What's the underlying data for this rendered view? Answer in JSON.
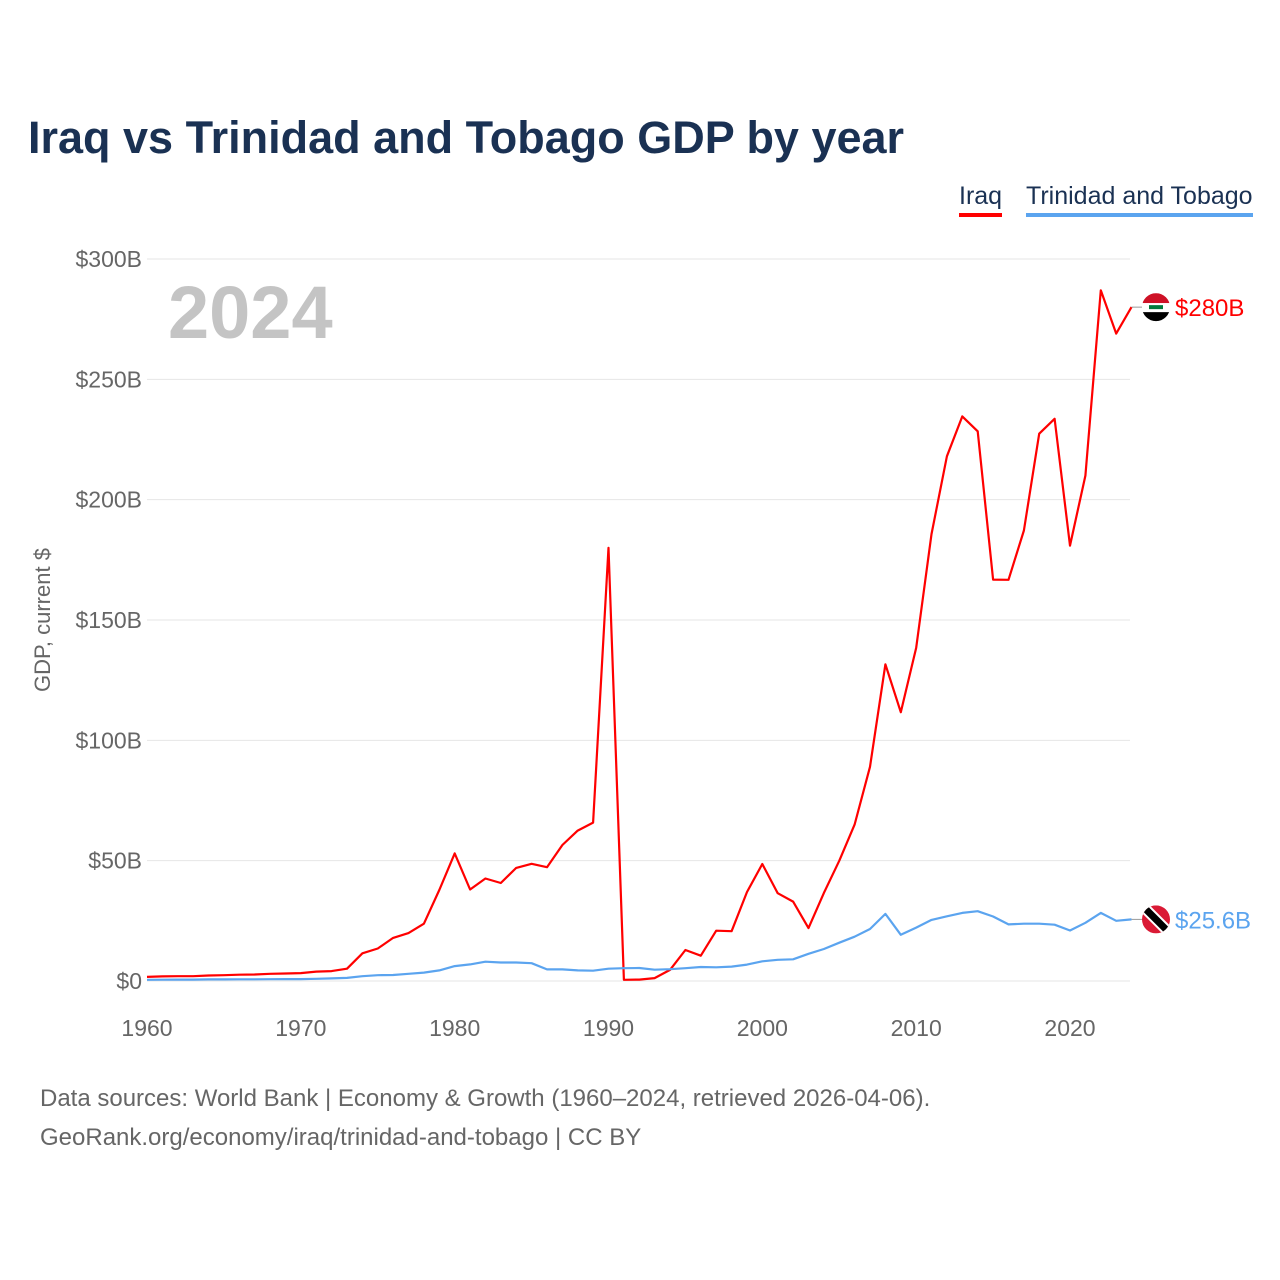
{
  "chart_data": {
    "type": "line",
    "title": "Iraq vs Trinidad and Tobago GDP by year",
    "ylabel": "GDP, current $",
    "xlabel": "",
    "year_label": "2024",
    "ylim": [
      0,
      300
    ],
    "xlim": [
      1960,
      2024
    ],
    "y_ticks": [
      0,
      50,
      100,
      150,
      200,
      250,
      300
    ],
    "y_tick_labels": [
      "$0",
      "$50B",
      "$100B",
      "$150B",
      "$200B",
      "$250B",
      "$300B"
    ],
    "x_ticks": [
      1960,
      1970,
      1980,
      1990,
      2000,
      2010,
      2020
    ],
    "x_tick_labels": [
      "1960",
      "1970",
      "1980",
      "1990",
      "2000",
      "2010",
      "2020"
    ],
    "grid": true,
    "legend_position": "top-right",
    "x": [
      1960,
      1961,
      1962,
      1963,
      1964,
      1965,
      1966,
      1967,
      1968,
      1969,
      1970,
      1971,
      1972,
      1973,
      1974,
      1975,
      1976,
      1977,
      1978,
      1979,
      1980,
      1981,
      1982,
      1983,
      1984,
      1985,
      1986,
      1987,
      1988,
      1989,
      1990,
      1991,
      1992,
      1993,
      1994,
      1995,
      1996,
      1997,
      1998,
      1999,
      2000,
      2001,
      2002,
      2003,
      2004,
      2005,
      2006,
      2007,
      2008,
      2009,
      2010,
      2011,
      2012,
      2013,
      2014,
      2015,
      2016,
      2017,
      2018,
      2019,
      2020,
      2021,
      2022,
      2023,
      2024
    ],
    "series": [
      {
        "name": "Iraq",
        "color": "#ff0000",
        "end_label": "$280B",
        "values": [
          1.7,
          1.9,
          2.0,
          2.0,
          2.3,
          2.4,
          2.6,
          2.7,
          3.0,
          3.1,
          3.3,
          3.9,
          4.1,
          5.1,
          11.5,
          13.5,
          17.9,
          19.9,
          23.8,
          37.8,
          53.0,
          38.0,
          42.6,
          40.7,
          47.0,
          48.7,
          47.3,
          56.5,
          62.5,
          65.8,
          180.0,
          0.5,
          0.6,
          1.2,
          4.6,
          12.9,
          10.5,
          20.9,
          20.7,
          37.0,
          48.6,
          36.5,
          33.0,
          22.0,
          36.6,
          50.0,
          65.0,
          89.0,
          131.6,
          111.7,
          138.5,
          185.7,
          218.0,
          234.6,
          228.4,
          166.8,
          166.7,
          187.2,
          227.4,
          233.6,
          180.9,
          210.0,
          287.0,
          269.0,
          280.0
        ]
      },
      {
        "name": "Trinidad and Tobago",
        "color": "#5ba4ef",
        "end_label": "$25.6B",
        "values": [
          0.5,
          0.55,
          0.6,
          0.6,
          0.65,
          0.65,
          0.7,
          0.7,
          0.75,
          0.8,
          0.8,
          0.9,
          1.1,
          1.3,
          2.0,
          2.4,
          2.5,
          3.0,
          3.5,
          4.4,
          6.2,
          6.9,
          8.0,
          7.7,
          7.7,
          7.4,
          4.8,
          4.8,
          4.4,
          4.3,
          5.1,
          5.3,
          5.4,
          4.7,
          4.9,
          5.3,
          5.8,
          5.7,
          6.0,
          6.8,
          8.2,
          8.8,
          9.0,
          11.3,
          13.3,
          15.9,
          18.4,
          21.6,
          27.9,
          19.2,
          22.2,
          25.4,
          26.9,
          28.3,
          29.0,
          26.8,
          23.5,
          23.8,
          23.8,
          23.4,
          21.0,
          24.2,
          28.3,
          25.0,
          25.6
        ]
      }
    ]
  },
  "footer": {
    "line1": "Data sources: World Bank | Economy & Growth (1960–2024, retrieved 2026-04-06).",
    "line2": "GeoRank.org/economy/iraq/trinidad-and-tobago | CC BY"
  }
}
